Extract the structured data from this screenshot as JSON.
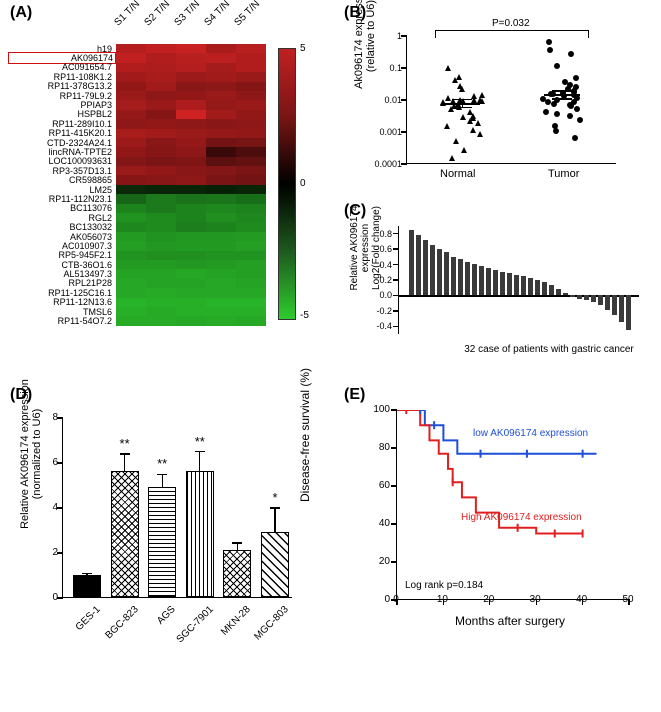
{
  "A": {
    "label": "(A)",
    "columns": [
      "S1 T/N",
      "S2 T/N",
      "S3 T/N",
      "S4 T/N",
      "S5 T/N"
    ],
    "rows": [
      "h19",
      "AK096174",
      "AC091654.7",
      "RP11-108K1.2",
      "RP11-378G13.2",
      "RP11-79L9.2",
      "PPIAP3",
      "HSPBL2",
      "RP11-289I10.1",
      "RP11-415K20.1",
      "CTD-2324A24.1",
      "lincRNA-TPTE2",
      "LOC100093631",
      "RP3-357D13.1",
      "CR598865",
      "LM25",
      "RP11-112N23.1",
      "BC113076",
      "RGL2",
      "BC133032",
      "AK056073",
      "AC010907.3",
      "RP5-945F2.1",
      "CTB-36O1.6",
      "AL513497.3",
      "RPL21P28",
      "RP11-125C16.1",
      "RP11-12N13.6",
      "TMSL6",
      "RP11-54O7.2"
    ],
    "boxed_row_index": 1,
    "values": [
      [
        4.7,
        5.0,
        5.2,
        4.4,
        4.8
      ],
      [
        5.0,
        4.6,
        4.8,
        4.9,
        4.6
      ],
      [
        4.6,
        4.5,
        4.7,
        4.3,
        4.6
      ],
      [
        4.2,
        4.4,
        4.1,
        4.2,
        4.0
      ],
      [
        3.8,
        4.2,
        3.6,
        3.7,
        3.5
      ],
      [
        4.0,
        3.7,
        3.8,
        4.0,
        3.7
      ],
      [
        4.3,
        4.0,
        4.5,
        3.9,
        4.0
      ],
      [
        3.9,
        3.5,
        5.4,
        4.2,
        3.8
      ],
      [
        3.7,
        3.8,
        3.7,
        3.6,
        3.7
      ],
      [
        4.4,
        4.2,
        4.0,
        3.9,
        3.8
      ],
      [
        4.1,
        3.6,
        3.9,
        3.0,
        3.1
      ],
      [
        3.8,
        3.5,
        3.7,
        1.5,
        2.0
      ],
      [
        3.4,
        3.2,
        3.3,
        2.4,
        2.6
      ],
      [
        4.0,
        3.8,
        3.6,
        3.4,
        3.2
      ],
      [
        3.5,
        3.6,
        3.7,
        3.2,
        3.0
      ],
      [
        -1.0,
        -0.9,
        -0.9,
        -0.8,
        -0.9
      ],
      [
        -2.5,
        -3.0,
        -2.8,
        -2.9,
        -2.7
      ],
      [
        -3.2,
        -3.0,
        -3.2,
        -3.3,
        -3.2
      ],
      [
        -3.6,
        -3.4,
        -3.2,
        -3.5,
        -3.3
      ],
      [
        -3.3,
        -3.4,
        -3.1,
        -3.2,
        -3.4
      ],
      [
        -3.8,
        -3.6,
        -3.7,
        -3.7,
        -3.8
      ],
      [
        -3.9,
        -3.7,
        -3.8,
        -3.8,
        -3.9
      ],
      [
        -3.6,
        -3.5,
        -3.5,
        -3.6,
        -3.6
      ],
      [
        -3.8,
        -3.8,
        -3.7,
        -3.8,
        -3.9
      ],
      [
        -4.0,
        -4.0,
        -4.1,
        -4.0,
        -3.9
      ],
      [
        -4.1,
        -4.0,
        -4.0,
        -4.1,
        -4.0
      ],
      [
        -4.1,
        -4.2,
        -4.1,
        -4.1,
        -4.1
      ],
      [
        -4.4,
        -4.3,
        -4.3,
        -4.4,
        -4.4
      ],
      [
        -4.3,
        -4.2,
        -4.3,
        -4.3,
        -4.3
      ],
      [
        -4.2,
        -4.2,
        -4.1,
        -4.2,
        -4.1
      ]
    ],
    "scale_min": -5,
    "scale_max": 5,
    "scale_ticks": [
      5,
      0,
      -5
    ],
    "color_pos": "#c02020",
    "color_mid": "#000000",
    "color_neg": "#2ecc2e"
  },
  "B": {
    "label": "(B)",
    "ylabel": "Ak096174 expression\n(relative to U6)",
    "categories": [
      "Normal",
      "Tumor"
    ],
    "p_text": "P=0.032",
    "y_ticks": [
      1,
      0.1,
      0.01,
      0.001,
      0.0001
    ],
    "y_tick_labels": [
      "1",
      "0.1",
      "0.01",
      "0.001",
      "0.0001"
    ],
    "normal": [
      0.00014,
      0.00025,
      0.0005,
      0.0008,
      0.0011,
      0.0014,
      0.0018,
      0.002,
      0.0025,
      0.0028,
      0.003,
      0.004,
      0.005,
      0.0055,
      0.006,
      0.007,
      0.0075,
      0.008,
      0.0085,
      0.0087,
      0.0088,
      0.009,
      0.0092,
      0.0095,
      0.011,
      0.012,
      0.013,
      0.02,
      0.025,
      0.038,
      0.05,
      0.09
    ],
    "tumor": [
      0.0006,
      0.001,
      0.0014,
      0.0022,
      0.003,
      0.0035,
      0.004,
      0.005,
      0.006,
      0.0065,
      0.007,
      0.0078,
      0.008,
      0.009,
      0.01,
      0.011,
      0.012,
      0.013,
      0.014,
      0.0145,
      0.015,
      0.016,
      0.018,
      0.02,
      0.024,
      0.028,
      0.035,
      0.045,
      0.11,
      0.25,
      0.35,
      0.6
    ],
    "mean_normal": 0.008,
    "mean_tumor": 0.015,
    "marker_normal": "triangle",
    "marker_tumor": "circle"
  },
  "C": {
    "label": "(C)",
    "ylabel": "Relative AK096174 expression\nLog2(Fold change)",
    "xlabel": "32 case of patients with gastric cancer",
    "y_ticks": [
      0.8,
      0.6,
      0.4,
      0.2,
      0.0,
      -0.2,
      -0.4
    ],
    "bar_color": "#3a3a3a",
    "values": [
      0.85,
      0.78,
      0.72,
      0.66,
      0.6,
      0.56,
      0.5,
      0.47,
      0.43,
      0.41,
      0.38,
      0.36,
      0.33,
      0.31,
      0.29,
      0.27,
      0.25,
      0.22,
      0.2,
      0.17,
      0.13,
      0.08,
      0.03,
      -0.02,
      -0.04,
      -0.06,
      -0.09,
      -0.13,
      -0.19,
      -0.26,
      -0.35,
      -0.45
    ]
  },
  "D": {
    "label": "(D)",
    "ylabel": "Relative AK096174 expression\n(normalized to U6)",
    "y_ticks": [
      0,
      2,
      4,
      6,
      8
    ],
    "categories": [
      "GES-1",
      "BGC-823",
      "AGS",
      "SGC-7901",
      "MKN-28",
      "MGC-803"
    ],
    "means": [
      1.0,
      5.6,
      4.9,
      5.6,
      2.1,
      2.9
    ],
    "errs": [
      0.1,
      0.8,
      0.6,
      0.9,
      0.35,
      1.1
    ],
    "sig": [
      "",
      "**",
      "**",
      "**",
      "",
      "*"
    ],
    "patterns": [
      "pat-solid",
      "pat-check",
      "pat-hstripe",
      "pat-vstripe",
      "pat-check",
      "pat-diag"
    ],
    "y_max": 8
  },
  "E": {
    "label": "(E)",
    "ylabel": "Disease-free survival (%)",
    "xlabel": "Months after surgery",
    "x_ticks": [
      0,
      10,
      20,
      30,
      40,
      50
    ],
    "y_ticks": [
      0,
      20,
      40,
      60,
      80,
      100
    ],
    "color_low": "#1f4fd6",
    "color_high": "#e02020",
    "legend_low": "low AK096174 expression",
    "legend_high": "High AK096174 expression",
    "log_rank": "Log rank p=0.184",
    "low": [
      [
        0,
        100
      ],
      [
        5,
        100
      ],
      [
        6,
        100
      ],
      [
        6,
        92
      ],
      [
        8,
        92
      ],
      [
        10,
        92
      ],
      [
        10,
        84
      ],
      [
        13,
        84
      ],
      [
        13,
        77
      ],
      [
        18,
        77
      ],
      [
        20,
        77
      ],
      [
        28,
        77
      ],
      [
        40,
        77
      ],
      [
        43,
        77
      ]
    ],
    "high": [
      [
        0,
        100
      ],
      [
        2,
        100
      ],
      [
        4,
        100
      ],
      [
        5,
        100
      ],
      [
        5,
        92
      ],
      [
        7,
        92
      ],
      [
        7,
        84
      ],
      [
        9,
        84
      ],
      [
        9,
        77
      ],
      [
        11,
        77
      ],
      [
        11,
        69
      ],
      [
        12,
        69
      ],
      [
        12,
        62
      ],
      [
        14,
        62
      ],
      [
        14,
        54
      ],
      [
        17,
        54
      ],
      [
        17,
        46
      ],
      [
        22,
        46
      ],
      [
        22,
        38
      ],
      [
        26,
        38
      ],
      [
        30,
        38
      ],
      [
        30,
        35
      ],
      [
        34,
        35
      ],
      [
        40,
        35
      ]
    ],
    "low_censor": [
      [
        5,
        100
      ],
      [
        8,
        92
      ],
      [
        18,
        77
      ],
      [
        28,
        77
      ],
      [
        40,
        77
      ]
    ],
    "high_censor": [
      [
        2,
        100
      ],
      [
        12,
        62
      ],
      [
        26,
        38
      ],
      [
        34,
        35
      ],
      [
        40,
        35
      ]
    ],
    "x_max": 50,
    "y_max": 100
  }
}
